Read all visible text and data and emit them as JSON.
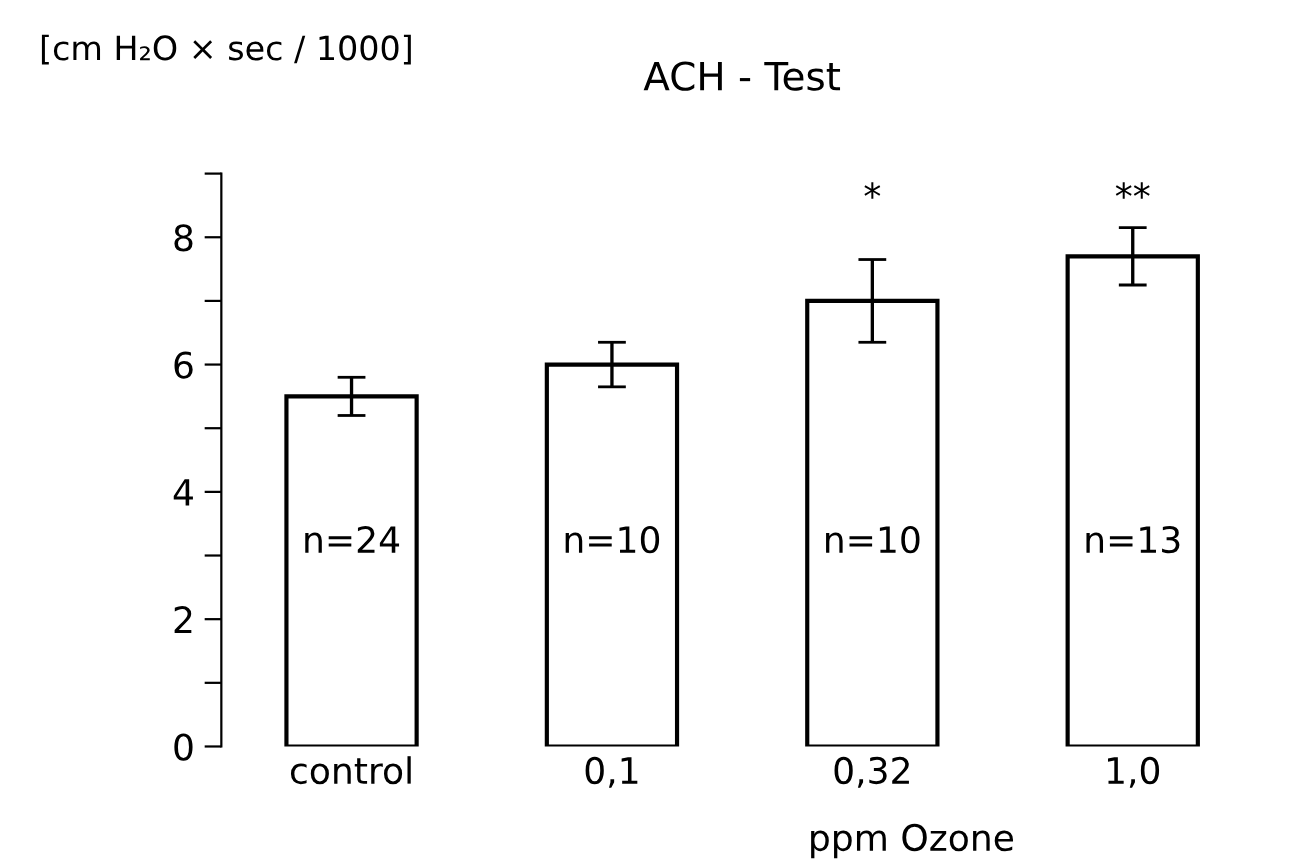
{
  "chart_data": {
    "type": "bar",
    "title": "ACH - Test",
    "ylabel": "[cm H₂O × sec / 1000]",
    "xlabel": "ppm Ozone",
    "categories": [
      "control",
      "0,1",
      "0,32",
      "1,0"
    ],
    "values": [
      5.5,
      6.0,
      7.0,
      7.7
    ],
    "errors": [
      0.3,
      0.35,
      0.65,
      0.45
    ],
    "color": "#ffffff",
    "ylim": [
      0,
      9
    ],
    "yticks": [
      0,
      {
        "value": 1,
        "label": null
      },
      2,
      {
        "value": 3,
        "label": null
      },
      4,
      {
        "value": 5,
        "label": null
      },
      6,
      {
        "value": 7,
        "label": null
      },
      8,
      {
        "value": 9,
        "label": null
      }
    ],
    "grid": false,
    "legend": false,
    "annotations": [
      "n=24",
      "n=10",
      "n=10",
      "n=13",
      "*",
      "**"
    ]
  }
}
